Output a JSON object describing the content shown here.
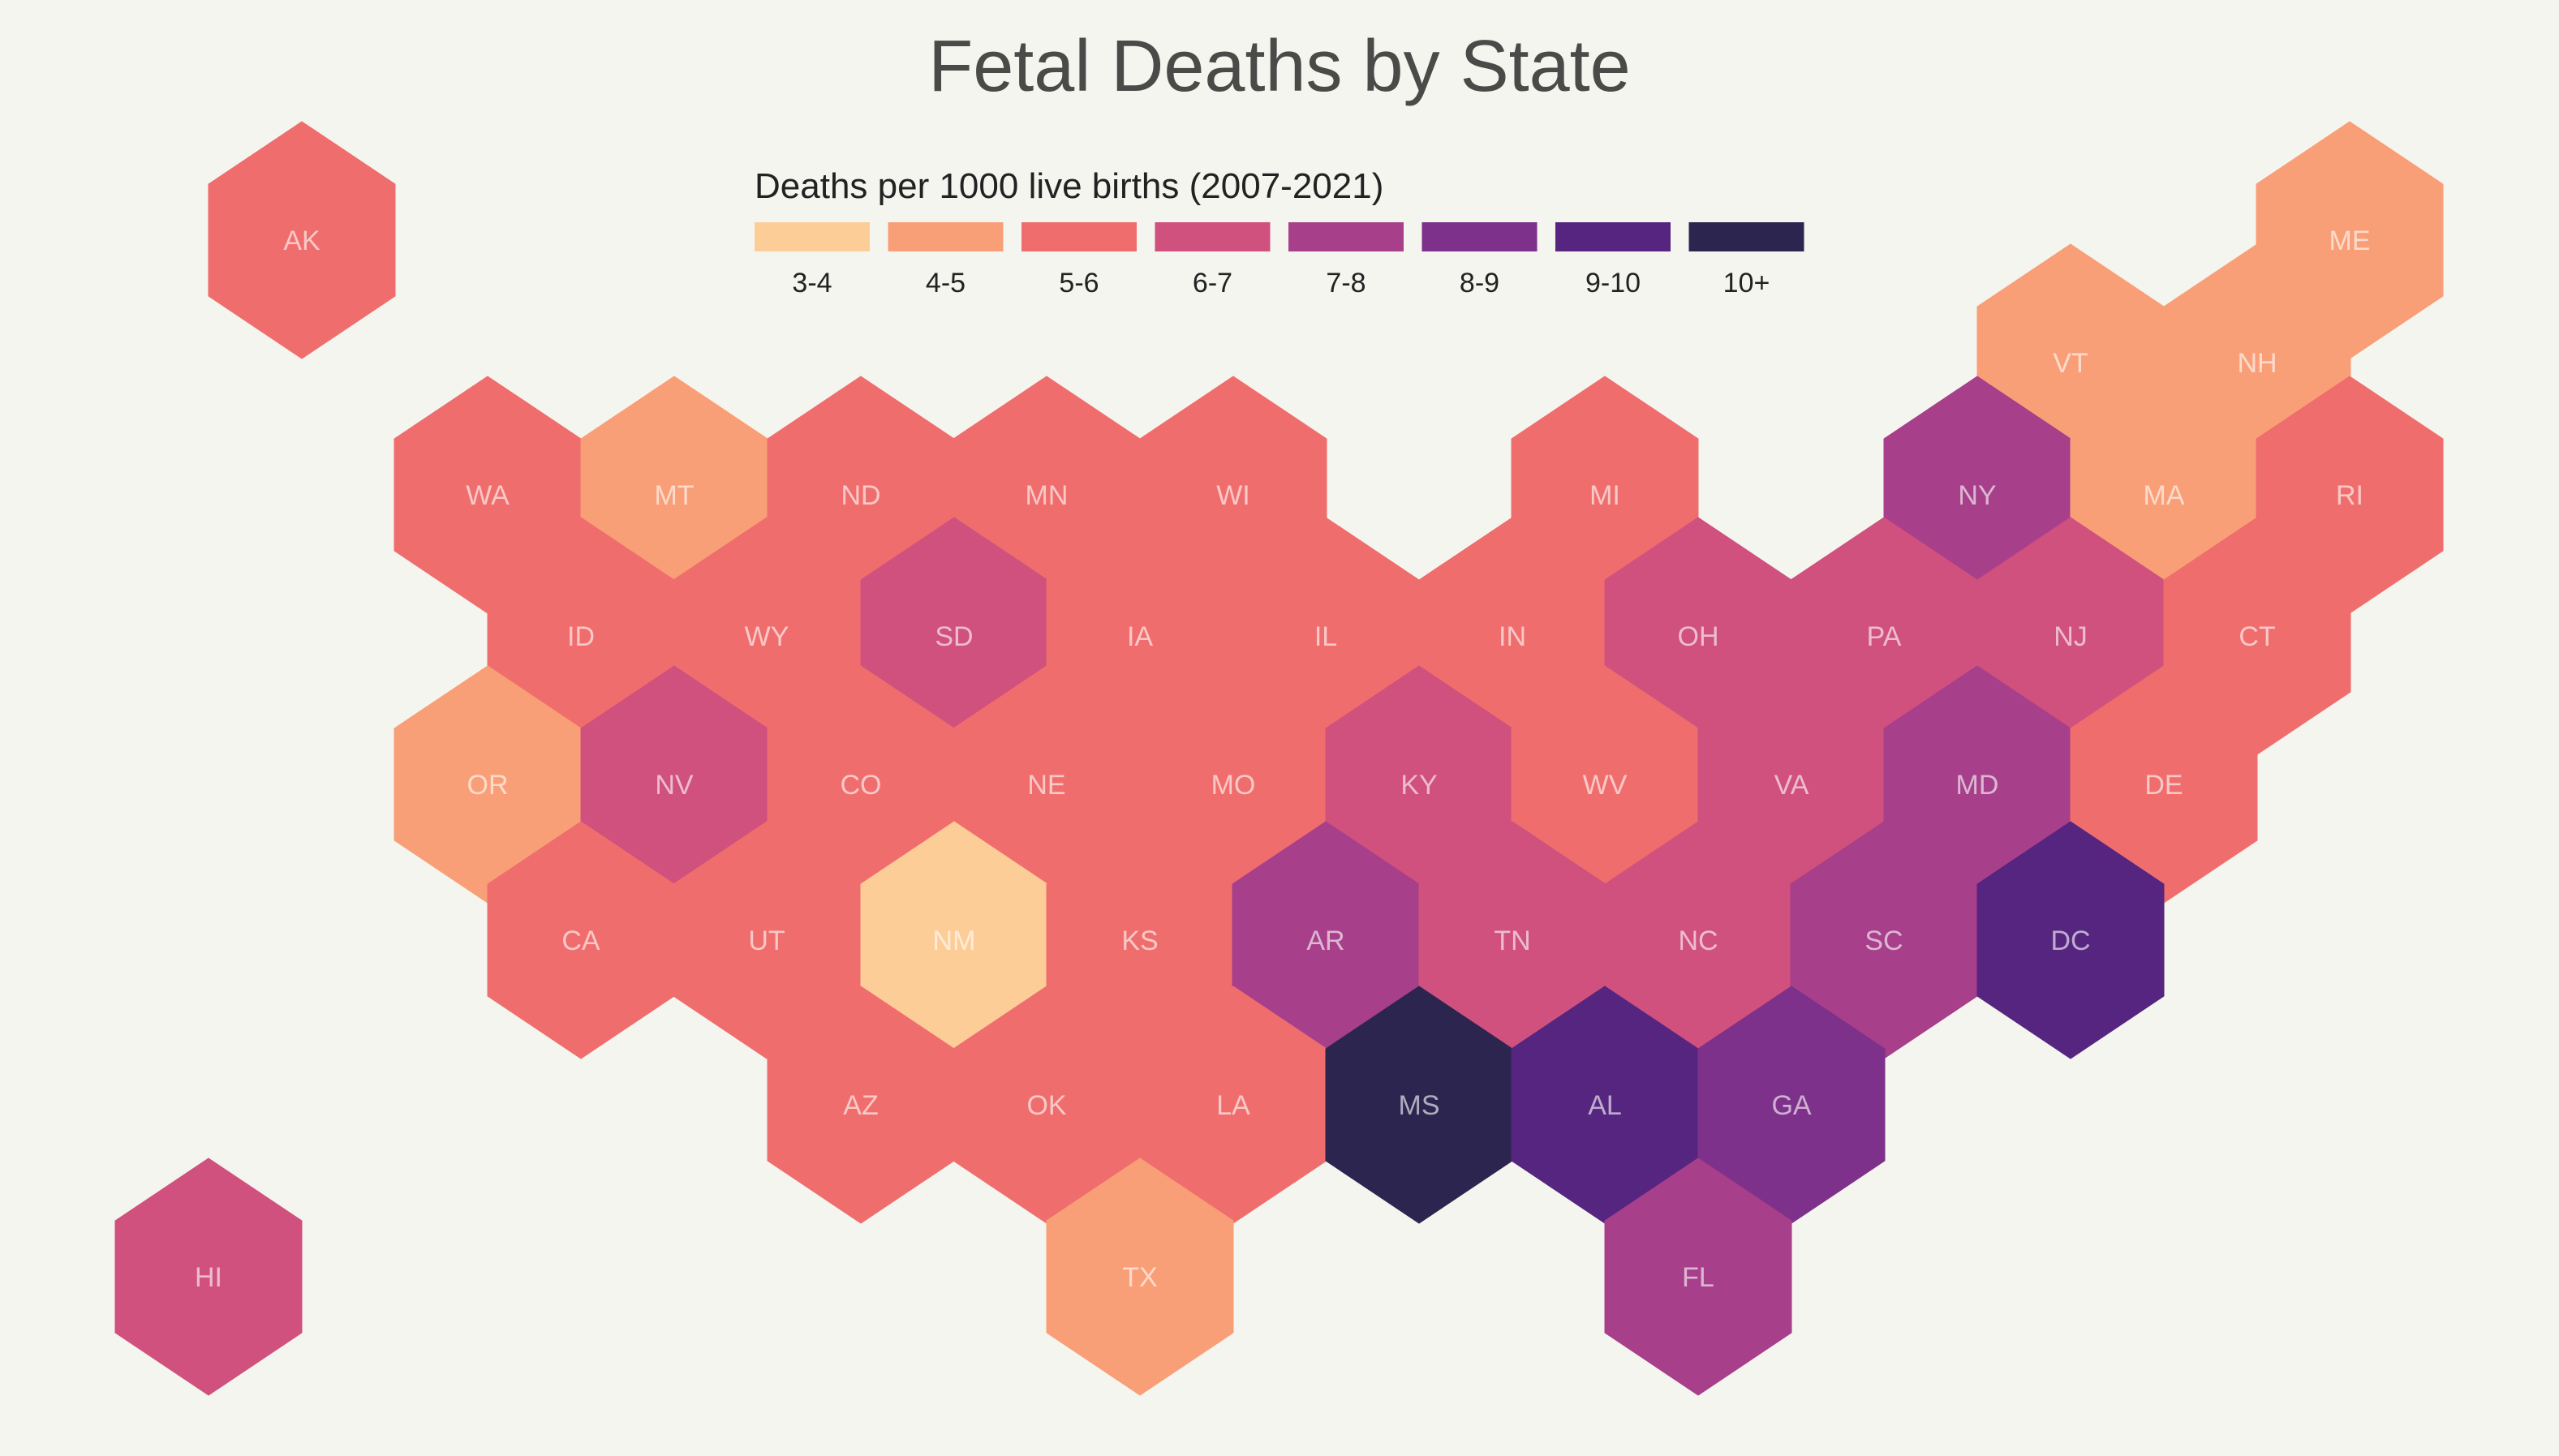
{
  "title": "Fetal Deaths by State",
  "legend": {
    "title": "Deaths per 1000 live births (2007-2021)",
    "bins": [
      {
        "label": "3-4",
        "color": "#fdcd98"
      },
      {
        "label": "4-5",
        "color": "#f99f77"
      },
      {
        "label": "5-6",
        "color": "#ef6e6d"
      },
      {
        "label": "6-7",
        "color": "#d0507e"
      },
      {
        "label": "7-8",
        "color": "#a73f8a"
      },
      {
        "label": "8-9",
        "color": "#7e318a"
      },
      {
        "label": "9-10",
        "color": "#552580"
      },
      {
        "label": "10+",
        "color": "#2c2550"
      }
    ]
  },
  "chart_data": {
    "type": "heatmap",
    "title": "Fetal Deaths by State",
    "legend_title": "Deaths per 1000 live births (2007-2021)",
    "legend_placement": "top-center",
    "states": [
      {
        "abbr": "AK",
        "bin": "5-6"
      },
      {
        "abbr": "ME",
        "bin": "4-5"
      },
      {
        "abbr": "VT",
        "bin": "4-5"
      },
      {
        "abbr": "NH",
        "bin": "4-5"
      },
      {
        "abbr": "WA",
        "bin": "5-6"
      },
      {
        "abbr": "MT",
        "bin": "4-5"
      },
      {
        "abbr": "ND",
        "bin": "5-6"
      },
      {
        "abbr": "MN",
        "bin": "5-6"
      },
      {
        "abbr": "WI",
        "bin": "5-6"
      },
      {
        "abbr": "MI",
        "bin": "5-6"
      },
      {
        "abbr": "NY",
        "bin": "7-8"
      },
      {
        "abbr": "MA",
        "bin": "4-5"
      },
      {
        "abbr": "RI",
        "bin": "5-6"
      },
      {
        "abbr": "ID",
        "bin": "5-6"
      },
      {
        "abbr": "WY",
        "bin": "5-6"
      },
      {
        "abbr": "SD",
        "bin": "6-7"
      },
      {
        "abbr": "IA",
        "bin": "5-6"
      },
      {
        "abbr": "IL",
        "bin": "5-6"
      },
      {
        "abbr": "IN",
        "bin": "5-6"
      },
      {
        "abbr": "OH",
        "bin": "6-7"
      },
      {
        "abbr": "PA",
        "bin": "6-7"
      },
      {
        "abbr": "NJ",
        "bin": "6-7"
      },
      {
        "abbr": "CT",
        "bin": "5-6"
      },
      {
        "abbr": "OR",
        "bin": "4-5"
      },
      {
        "abbr": "NV",
        "bin": "6-7"
      },
      {
        "abbr": "CO",
        "bin": "5-6"
      },
      {
        "abbr": "NE",
        "bin": "5-6"
      },
      {
        "abbr": "MO",
        "bin": "5-6"
      },
      {
        "abbr": "KY",
        "bin": "6-7"
      },
      {
        "abbr": "WV",
        "bin": "5-6"
      },
      {
        "abbr": "VA",
        "bin": "6-7"
      },
      {
        "abbr": "MD",
        "bin": "7-8"
      },
      {
        "abbr": "DE",
        "bin": "5-6"
      },
      {
        "abbr": "CA",
        "bin": "5-6"
      },
      {
        "abbr": "UT",
        "bin": "5-6"
      },
      {
        "abbr": "NM",
        "bin": "3-4"
      },
      {
        "abbr": "KS",
        "bin": "5-6"
      },
      {
        "abbr": "AR",
        "bin": "7-8"
      },
      {
        "abbr": "TN",
        "bin": "6-7"
      },
      {
        "abbr": "NC",
        "bin": "6-7"
      },
      {
        "abbr": "SC",
        "bin": "7-8"
      },
      {
        "abbr": "DC",
        "bin": "9-10"
      },
      {
        "abbr": "AZ",
        "bin": "5-6"
      },
      {
        "abbr": "OK",
        "bin": "5-6"
      },
      {
        "abbr": "LA",
        "bin": "5-6"
      },
      {
        "abbr": "MS",
        "bin": "10+"
      },
      {
        "abbr": "AL",
        "bin": "9-10"
      },
      {
        "abbr": "GA",
        "bin": "8-9"
      },
      {
        "abbr": "HI",
        "bin": "6-7"
      },
      {
        "abbr": "TX",
        "bin": "4-5"
      },
      {
        "abbr": "FL",
        "bin": "7-8"
      }
    ]
  }
}
